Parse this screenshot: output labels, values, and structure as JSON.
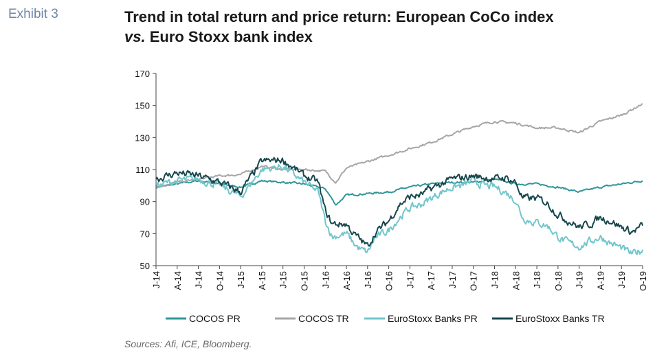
{
  "exhibit_label": "Exhibit 3",
  "title_line1": "Trend in total return and price return: European CoCo index",
  "title_vs": "vs.",
  "title_line2_rest": " Euro Stoxx bank index",
  "source": "Sources: Afi, ICE, Bloomberg.",
  "colors": {
    "cocos_pr": "#2e9698",
    "cocos_tr": "#a6a6a6",
    "stoxx_pr": "#72c6cc",
    "stoxx_tr": "#17474d"
  },
  "chart_data": {
    "type": "line",
    "ylim": [
      50,
      170
    ],
    "yticks": [
      50,
      70,
      90,
      110,
      130,
      150,
      170
    ],
    "xlim": [
      0,
      69
    ],
    "xticks": [
      {
        "label": "J-14",
        "pos": 0
      },
      {
        "label": "A-14",
        "pos": 3
      },
      {
        "label": "J-14",
        "pos": 6
      },
      {
        "label": "O-14",
        "pos": 9
      },
      {
        "label": "J-15",
        "pos": 12
      },
      {
        "label": "A-15",
        "pos": 15
      },
      {
        "label": "J-15",
        "pos": 18
      },
      {
        "label": "O-15",
        "pos": 21
      },
      {
        "label": "J-16",
        "pos": 24
      },
      {
        "label": "A-16",
        "pos": 27
      },
      {
        "label": "J-16",
        "pos": 30
      },
      {
        "label": "O-16",
        "pos": 33
      },
      {
        "label": "J-17",
        "pos": 36
      },
      {
        "label": "A-17",
        "pos": 39
      },
      {
        "label": "J-17",
        "pos": 42
      },
      {
        "label": "O-17",
        "pos": 45
      },
      {
        "label": "J-18",
        "pos": 48
      },
      {
        "label": "A-18",
        "pos": 51
      },
      {
        "label": "J-18",
        "pos": 54
      },
      {
        "label": "O-18",
        "pos": 57
      },
      {
        "label": "J-19",
        "pos": 60
      },
      {
        "label": "A-19",
        "pos": 63
      },
      {
        "label": "J-19",
        "pos": 66
      },
      {
        "label": "O-19",
        "pos": 69
      }
    ],
    "grid": false,
    "legend_position": "bottom",
    "series": [
      {
        "key": "cocos_pr",
        "name": "COCOS PR",
        "x": [
          0,
          3,
          6,
          9,
          12,
          15,
          18,
          21,
          24,
          25.5,
          27,
          30,
          33,
          36,
          39,
          42,
          45,
          48,
          51,
          54,
          57,
          60,
          63,
          66,
          69
        ],
        "values": [
          99,
          101,
          103,
          101,
          99,
          103,
          102,
          101,
          98,
          88,
          94,
          95,
          96,
          99,
          101,
          102,
          102,
          104,
          101,
          101,
          99,
          96,
          99,
          101,
          103
        ]
      },
      {
        "key": "cocos_tr",
        "name": "COCOS TR",
        "x": [
          0,
          3,
          6,
          9,
          12,
          15,
          18,
          21,
          24,
          25.5,
          27,
          30,
          33,
          36,
          39,
          42,
          45,
          48,
          51,
          54,
          57,
          60,
          63,
          66,
          69
        ],
        "values": [
          99,
          102,
          104,
          106,
          107,
          112,
          110,
          110,
          109,
          102,
          111,
          115,
          119,
          123,
          127,
          132,
          137,
          140,
          139,
          136,
          136,
          133,
          140,
          144,
          151
        ]
      },
      {
        "key": "stoxx_pr",
        "name": "EuroStoxx Banks PR",
        "x": [
          0,
          3,
          6,
          9,
          12,
          15,
          18,
          21,
          23,
          24,
          25,
          27,
          28,
          29,
          30,
          31,
          33,
          34.5,
          36,
          37.5,
          39,
          40.5,
          42,
          43.5,
          45,
          46.5,
          48,
          49.5,
          51,
          52,
          53,
          54,
          55.5,
          57,
          58.5,
          60,
          61.5,
          63,
          64.5,
          66,
          67.5,
          69
        ],
        "values": [
          100,
          103,
          104,
          100,
          93,
          110,
          112,
          102,
          96,
          78,
          68,
          70,
          64,
          60,
          58,
          67,
          72,
          80,
          86,
          88,
          92,
          96,
          99,
          100,
          103,
          100,
          99,
          96,
          91,
          80,
          78,
          77,
          75,
          68,
          64,
          62,
          65,
          68,
          64,
          61,
          57,
          60
        ]
      },
      {
        "key": "stoxx_tr",
        "name": "EuroStoxx Banks TR",
        "x": [
          0,
          3,
          6,
          9,
          12,
          15,
          18,
          21,
          23,
          24,
          25,
          27,
          28,
          29,
          30,
          31,
          33,
          34.5,
          36,
          37.5,
          39,
          40.5,
          42,
          43.5,
          45,
          46.5,
          48,
          49.5,
          51,
          52,
          53,
          54,
          55.5,
          57,
          58.5,
          60,
          61.5,
          63,
          64.5,
          66,
          67.5,
          69
        ],
        "values": [
          104,
          108,
          106,
          102,
          96,
          115,
          116,
          106,
          102,
          84,
          76,
          76,
          70,
          66,
          62,
          70,
          78,
          88,
          93,
          94,
          98,
          101,
          104,
          105,
          106,
          105,
          104,
          105,
          102,
          92,
          92,
          92,
          89,
          82,
          78,
          74,
          76,
          80,
          78,
          74,
          71,
          75
        ]
      }
    ]
  }
}
